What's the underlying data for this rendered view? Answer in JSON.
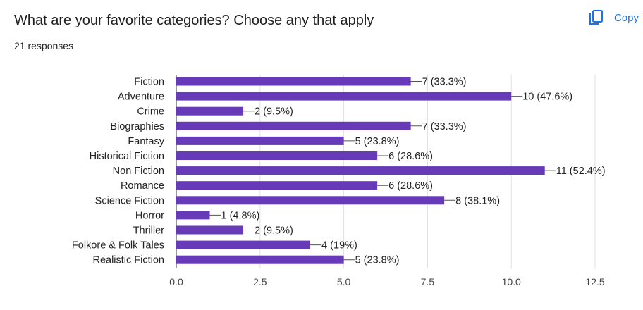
{
  "header": {
    "title": "What are your favorite categories? Choose any that apply",
    "responses": "21 responses",
    "copy_label": "Copy",
    "copy_icon": "copy-icon",
    "accent_color": "#1a73e8"
  },
  "chart_data": {
    "type": "bar",
    "orientation": "horizontal",
    "categories": [
      "Fiction",
      "Adventure",
      "Crime",
      "Biographies",
      "Fantasy",
      "Historical Fiction",
      "Non Fiction",
      "Romance",
      "Science Fiction",
      "Horror",
      "Thriller",
      "Folkore & Folk Tales",
      "Realistic Fiction"
    ],
    "series": [
      {
        "values": [
          7,
          10,
          2,
          7,
          5,
          6,
          11,
          6,
          8,
          1,
          2,
          4,
          5
        ],
        "labels": [
          "7 (33.3%)",
          "10 (47.6%)",
          "2 (9.5%)",
          "7 (33.3%)",
          "5 (23.8%)",
          "6 (28.6%)",
          "11 (52.4%)",
          "6 (28.6%)",
          "8 (38.1%)",
          "1 (4.8%)",
          "2 (9.5%)",
          "4 (19%)",
          "5 (23.8%)"
        ]
      }
    ],
    "x_ticks": [
      "0.0",
      "2.5",
      "5.0",
      "7.5",
      "10.0",
      "12.5"
    ],
    "xlim": [
      0,
      12.5
    ],
    "xlabel": "",
    "ylabel": "",
    "grid": true,
    "bar_color": "#673ab7"
  }
}
